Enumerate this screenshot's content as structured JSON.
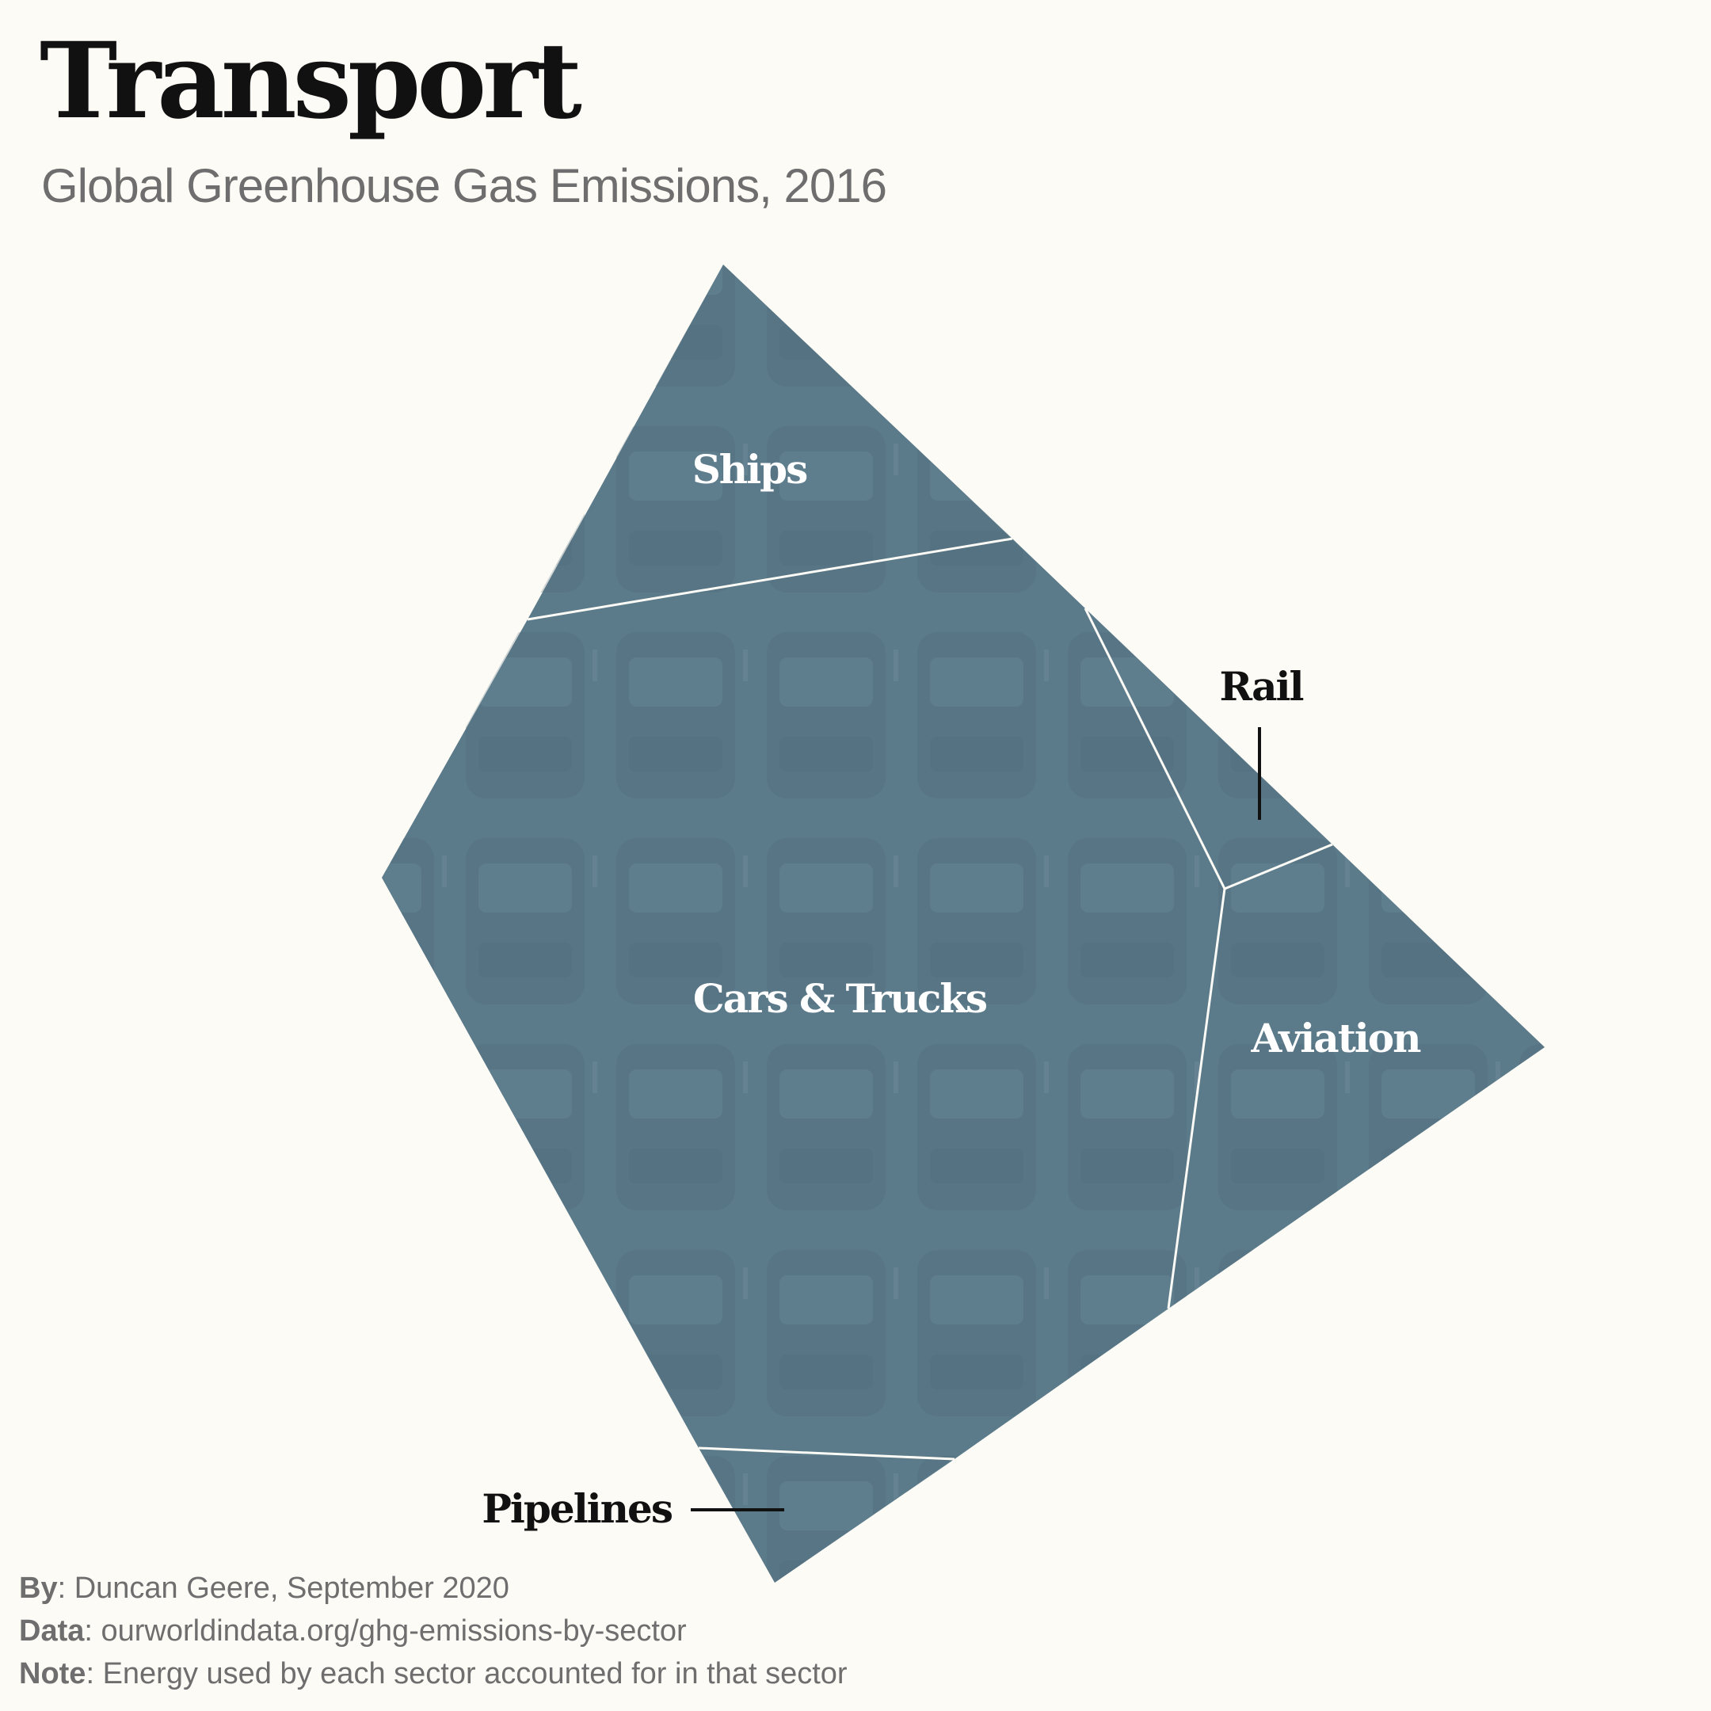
{
  "header": {
    "title": "Transport",
    "subtitle": "Global Greenhouse Gas Emissions, 2016"
  },
  "diagram": {
    "fill_color": "#5b7a8a",
    "segments": [
      {
        "name": "Ships",
        "label": "Ships",
        "label_color": "#ffffff"
      },
      {
        "name": "Cars & Trucks",
        "label": "Cars & Trucks",
        "label_color": "#ffffff"
      },
      {
        "name": "Rail",
        "label": "Rail",
        "label_color": "#111111"
      },
      {
        "name": "Aviation",
        "label": "Aviation",
        "label_color": "#ffffff"
      },
      {
        "name": "Pipelines",
        "label": "Pipelines",
        "label_color": "#111111"
      }
    ]
  },
  "footer": {
    "by_key": "By",
    "by_value": ": Duncan Geere, September 2020",
    "data_key": "Data",
    "data_value": ": ourworldindata.org/ghg-emissions-by-sector",
    "note_key": "Note",
    "note_value": ": Energy used by each sector accounted for in that sector"
  }
}
